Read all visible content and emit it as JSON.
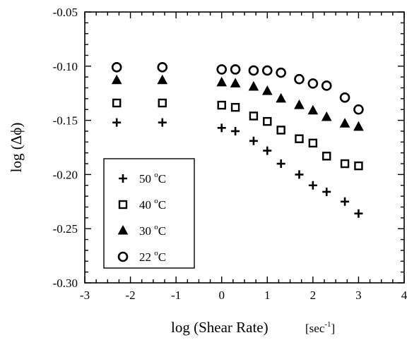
{
  "chart_data": {
    "type": "scatter",
    "title": "",
    "xlabel": "log (Shear Rate)",
    "xlabel_unit": {
      "base": "[sec",
      "exponent": "-1",
      "close": "]"
    },
    "ylabel": "log (Δϕ)",
    "xlim": [
      -3,
      4
    ],
    "ylim": [
      -0.3,
      -0.05
    ],
    "x_ticks": [
      -3,
      -2,
      -1,
      0,
      1,
      2,
      3,
      4
    ],
    "x_tick_labels": [
      "-3",
      "-2",
      "-1",
      "0",
      "1",
      "2",
      "3",
      "4"
    ],
    "y_ticks": [
      -0.3,
      -0.25,
      -0.2,
      -0.15,
      -0.1,
      -0.05
    ],
    "y_tick_labels": [
      "-0.30",
      "-0.25",
      "-0.20",
      "-0.15",
      "-0.10",
      "-0.05"
    ],
    "grid": false,
    "legend_position": "lower-left",
    "series": [
      {
        "name": "50 °C",
        "legend": {
          "value": "50",
          "degree": "o",
          "unit": "C"
        },
        "marker": "plus",
        "x": [
          -2.3,
          -1.3,
          0.0,
          0.3,
          0.7,
          1.0,
          1.3,
          1.7,
          2.0,
          2.3,
          2.7,
          3.0
        ],
        "y": [
          -0.152,
          -0.152,
          -0.157,
          -0.16,
          -0.169,
          -0.178,
          -0.19,
          -0.2,
          -0.21,
          -0.216,
          -0.225,
          -0.236
        ]
      },
      {
        "name": "40 °C",
        "legend": {
          "value": "40",
          "degree": "o",
          "unit": "C"
        },
        "marker": "square",
        "x": [
          -2.3,
          -1.3,
          0.0,
          0.3,
          0.7,
          1.0,
          1.3,
          1.7,
          2.0,
          2.3,
          2.7,
          3.0
        ],
        "y": [
          -0.134,
          -0.134,
          -0.136,
          -0.138,
          -0.146,
          -0.151,
          -0.159,
          -0.167,
          -0.171,
          -0.183,
          -0.19,
          -0.192
        ]
      },
      {
        "name": "30 °C",
        "legend": {
          "value": "30",
          "degree": "o",
          "unit": "C"
        },
        "marker": "triangle",
        "x": [
          -2.3,
          -1.3,
          0.0,
          0.3,
          0.7,
          1.0,
          1.3,
          1.7,
          2.0,
          2.3,
          2.7,
          3.0
        ],
        "y": [
          -0.113,
          -0.113,
          -0.115,
          -0.116,
          -0.119,
          -0.123,
          -0.13,
          -0.136,
          -0.141,
          -0.147,
          -0.153,
          -0.156
        ]
      },
      {
        "name": "22 °C",
        "legend": {
          "value": "22",
          "degree": "o",
          "unit": "C"
        },
        "marker": "circle",
        "x": [
          -2.3,
          -1.3,
          0.0,
          0.3,
          0.7,
          1.0,
          1.3,
          1.7,
          2.0,
          2.3,
          2.7,
          3.0
        ],
        "y": [
          -0.101,
          -0.101,
          -0.103,
          -0.103,
          -0.104,
          -0.104,
          -0.106,
          -0.112,
          -0.116,
          -0.118,
          -0.129,
          -0.14
        ]
      }
    ]
  }
}
